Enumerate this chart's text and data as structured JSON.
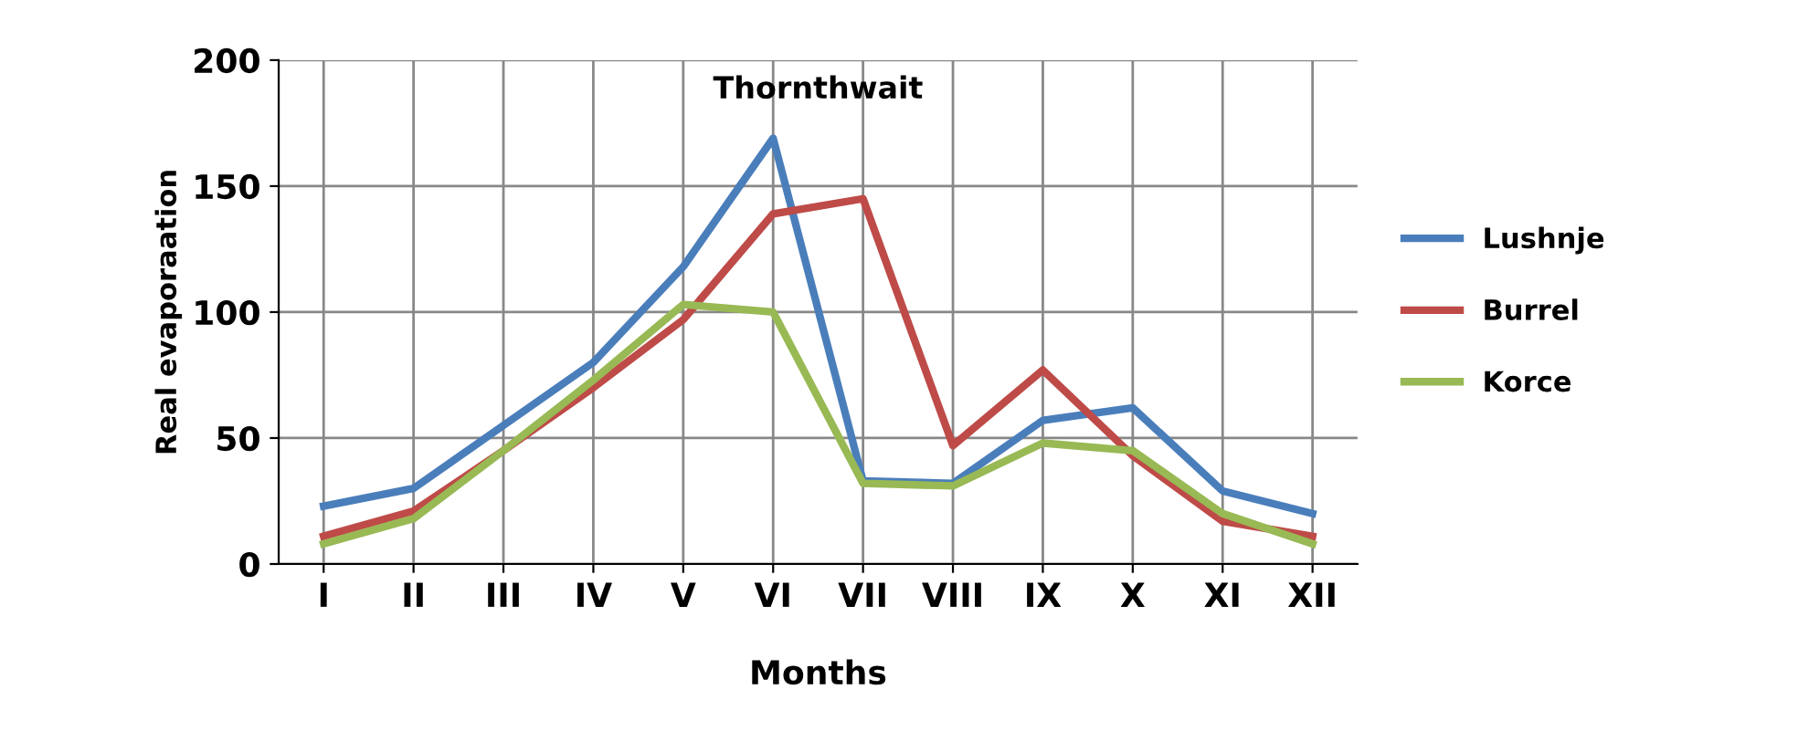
{
  "chart_data": {
    "type": "line",
    "title": "Thornthwait",
    "xlabel": "Months",
    "ylabel": "Real evaporaation",
    "categories": [
      "I",
      "II",
      "III",
      "IV",
      "V",
      "VI",
      "VII",
      "VIII",
      "IX",
      "X",
      "XI",
      "XII"
    ],
    "series": [
      {
        "name": "Lushnje",
        "color": "#4a7ebb",
        "values": [
          23,
          30,
          55,
          80,
          118,
          169,
          33,
          32,
          57,
          62,
          29,
          20
        ]
      },
      {
        "name": "Burrel",
        "color": "#be4b48",
        "values": [
          11,
          21,
          45,
          70,
          97,
          139,
          145,
          47,
          77,
          43,
          17,
          11
        ]
      },
      {
        "name": "Korce",
        "color": "#98b954",
        "values": [
          8,
          18,
          45,
          73,
          103,
          100,
          32,
          31,
          48,
          45,
          20,
          8
        ]
      }
    ],
    "ylim": [
      0,
      200
    ],
    "yticks": [
      0,
      50,
      100,
      150,
      200
    ],
    "grid": true,
    "legend": "right",
    "marker": "none",
    "line_style": "solid"
  }
}
